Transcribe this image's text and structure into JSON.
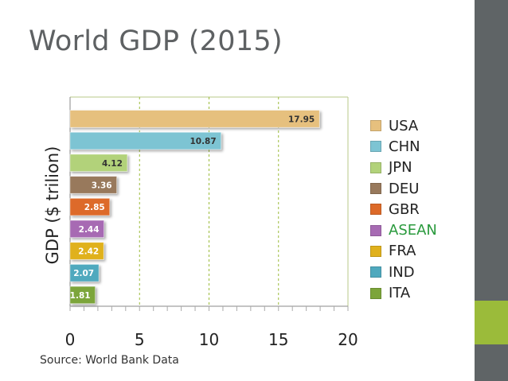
{
  "title": "World GDP (2015)",
  "source": "Source: World Bank Data",
  "chart_data": {
    "type": "bar",
    "orientation": "horizontal",
    "ylabel": "GDP ($ trilion)",
    "xlim": [
      0,
      20
    ],
    "xticks": [
      "0",
      "5",
      "10",
      "15",
      "20"
    ],
    "categories": [
      "USA",
      "CHN",
      "JPN",
      "DEU",
      "GBR",
      "ASEAN",
      "FRA",
      "IND",
      "ITA"
    ],
    "values": [
      17.95,
      10.87,
      4.12,
      3.36,
      2.85,
      2.44,
      2.42,
      2.07,
      1.81
    ],
    "labels": [
      "17.95",
      "10.87",
      "4.12",
      "3.36",
      "2.85",
      "2.44",
      "2.42",
      "2.07",
      "1.81"
    ],
    "colors": [
      "#e6c07e",
      "#7dc4d3",
      "#b2d27a",
      "#98795c",
      "#dd6a29",
      "#a76bb3",
      "#e0b11d",
      "#4fa9be",
      "#7ca53a"
    ],
    "legend_text_colors": [
      "#222222",
      "#222222",
      "#222222",
      "#222222",
      "#222222",
      "#2a9a3d",
      "#222222",
      "#222222",
      "#222222"
    ],
    "legend_position": "right",
    "grid": "vertical-dashed"
  }
}
